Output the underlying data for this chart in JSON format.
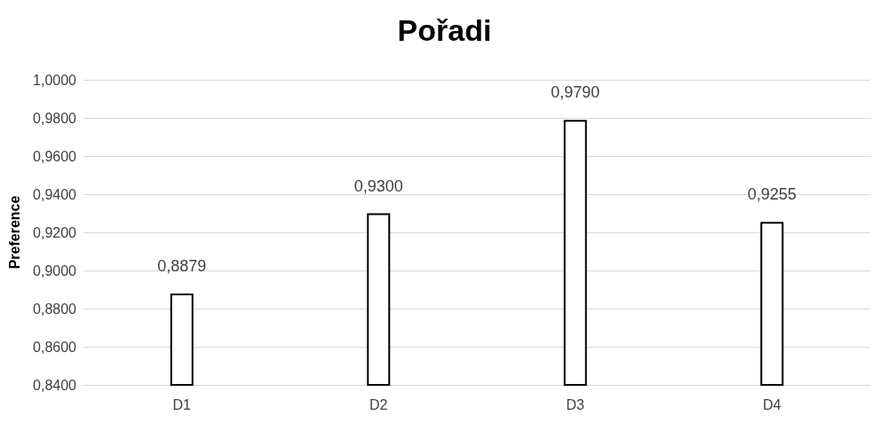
{
  "chart_data": {
    "type": "bar",
    "title": "Pořadi",
    "ylabel": "Preference",
    "categories": [
      "D1",
      "D2",
      "D3",
      "D4"
    ],
    "values": [
      0.8879,
      0.93,
      0.979,
      0.9255
    ],
    "color": "#ffffff",
    "ylim": [
      0.84,
      1.0
    ],
    "yticks": [
      {
        "value": 0.84,
        "label": "0,8400"
      },
      {
        "value": 0.86,
        "label": "0,8600"
      },
      {
        "value": 0.88,
        "label": "0,8800"
      },
      {
        "value": 0.9,
        "label": "0,9000"
      },
      {
        "value": 0.92,
        "label": "0,9200"
      },
      {
        "value": 0.94,
        "label": "0,9400"
      },
      {
        "value": 0.96,
        "label": "0,9600"
      },
      {
        "value": 0.98,
        "label": "0,9800"
      },
      {
        "value": 1.0,
        "label": "1,0000"
      }
    ],
    "value_labels": [
      "0,8879",
      "0,9300",
      "0,9790",
      "0,9255"
    ],
    "grid": "y"
  }
}
